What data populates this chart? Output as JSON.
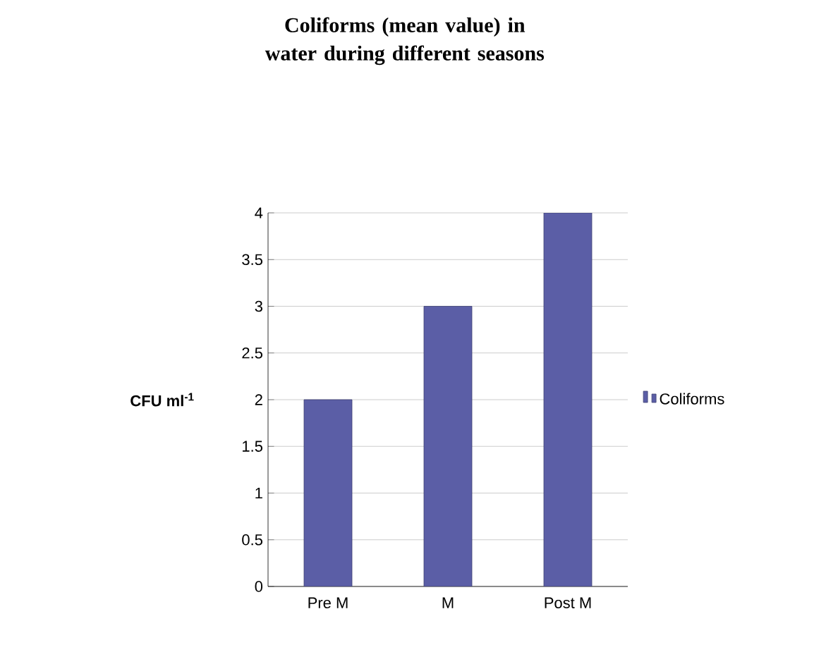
{
  "chart_data": {
    "type": "bar",
    "title": "Coliforms (mean value) in water during different seasons",
    "ylabel": "CFU ml$^{-1}$",
    "categories": [
      "Pre M",
      "M",
      "Post M"
    ],
    "series": [
      {
        "name": "Coliforms",
        "color": "#5b5ea6",
        "values": [
          2,
          3,
          4
        ]
      }
    ],
    "ylim": [
      0,
      4
    ],
    "yticks": [
      0,
      0.5,
      1,
      1.5,
      2,
      2.5,
      3,
      3.5,
      4
    ],
    "grid": "y",
    "legend": "right"
  }
}
